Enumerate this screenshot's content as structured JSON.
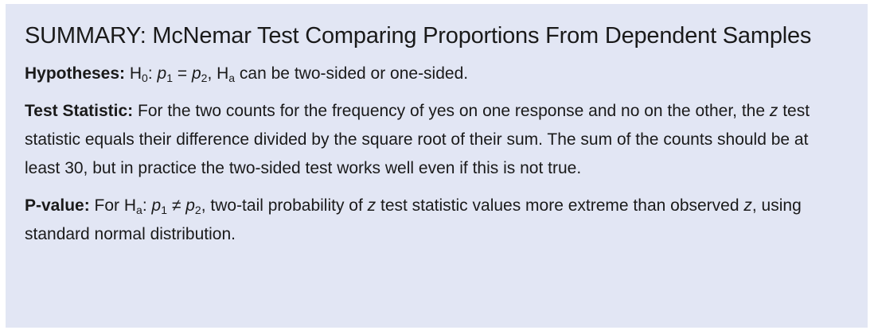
{
  "summary": {
    "title": "SUMMARY: McNemar Test Comparing Proportions From Dependent Samples",
    "hypotheses": {
      "label": "Hypotheses:",
      "h0_symbol": "H",
      "h0_sub": "0",
      "h0_colon": ":",
      "p": "p",
      "sub1": "1",
      "equals": "=",
      "sub2": "2",
      "ha_symbol": "H",
      "ha_sub": "a",
      "rest": " can be two-sided or one-sided."
    },
    "test_statistic": {
      "label": "Test Statistic:",
      "text_before_z": "For the two counts for the frequency of yes on one response and no on the other, the ",
      "z": "z",
      "text_after_z": " test statistic equals their difference divided by the square root of their sum. The sum of the counts should be at least 30, but in practice the two-sided test works well even if this is not true."
    },
    "p_value": {
      "label": "P-value:",
      "for": "For H",
      "ha_sub": "a",
      "colon": ":",
      "p": "p",
      "sub1": "1",
      "neq": "≠",
      "sub2": "2",
      "text_before_z": ", two-tail probability of ",
      "z": "z",
      "text_mid": " test statistic values more extreme than observed ",
      "z2": "z",
      "text_end": ", using standard normal distribution."
    }
  }
}
